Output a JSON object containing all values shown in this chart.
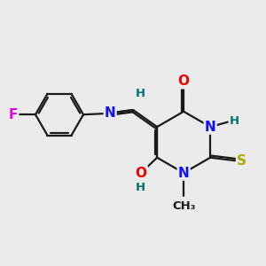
{
  "background_color": "#ebebeb",
  "bond_color": "#1a1a1a",
  "atom_colors": {
    "F": "#ee00ee",
    "N": "#1010ff",
    "O": "#ee0000",
    "S": "#aaaa00",
    "H": "#007070",
    "C": "#1a1a1a"
  },
  "lw": 1.6,
  "fs": 11,
  "fsh": 9.5
}
